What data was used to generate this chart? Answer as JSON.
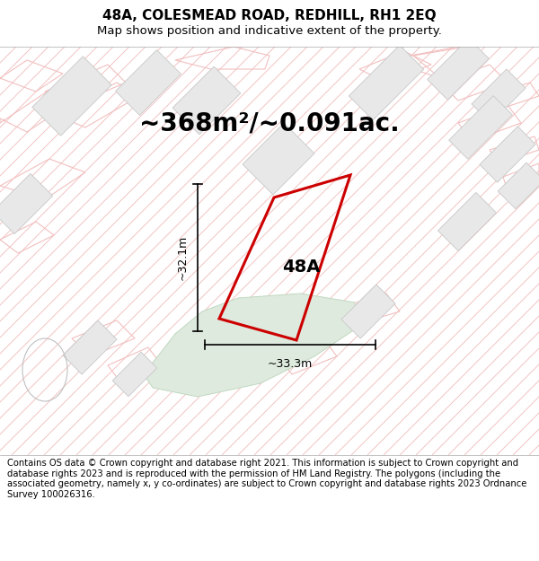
{
  "title": "48A, COLESMEAD ROAD, REDHILL, RH1 2EQ",
  "subtitle": "Map shows position and indicative extent of the property.",
  "area_label": "~368m²/~0.091ac.",
  "plot_label": "48A",
  "dim_h": "~32.1m",
  "dim_w": "~33.3m",
  "footer": "Contains OS data © Crown copyright and database right 2021. This information is subject to Crown copyright and database rights 2023 and is reproduced with the permission of HM Land Registry. The polygons (including the associated geometry, namely x, y co-ordinates) are subject to Crown copyright and database rights 2023 Ordnance Survey 100026316.",
  "map_bg": "#f7f6f6",
  "hatch_color": "#f2bfbf",
  "building_fill": "#e8e8e8",
  "building_edge": "#d0a0a0",
  "plot_fill": "#ffffff",
  "plot_edge": "#cc0000",
  "green_fill": "#deeade",
  "green_edge": "#c0d8c0",
  "title_fontsize": 11,
  "subtitle_fontsize": 9.5,
  "area_fontsize": 20,
  "label_fontsize": 14,
  "dim_fontsize": 9,
  "footer_fontsize": 7.2
}
